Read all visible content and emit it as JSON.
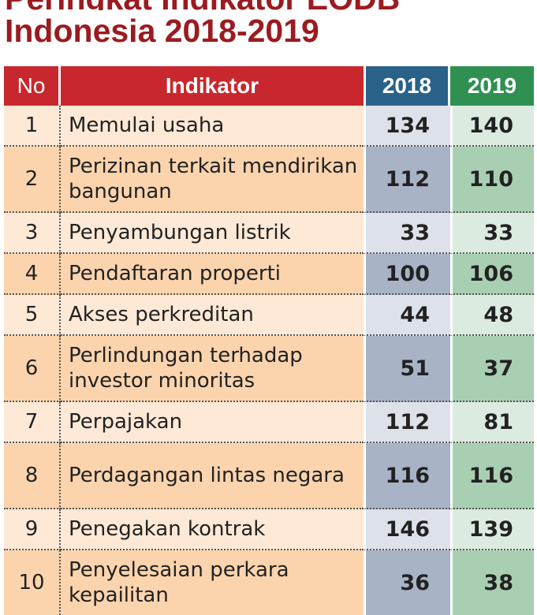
{
  "title": {
    "line1": "Peringkat Indikator EODB",
    "line2": "Indonesia 2018-2019"
  },
  "table": {
    "headers": {
      "no": "No",
      "indikator": "Indikator",
      "y2018": "2018",
      "y2019": "2019"
    },
    "rows": [
      {
        "no": "1",
        "label": "Memulai usaha",
        "v2018": "134",
        "v2019": "140"
      },
      {
        "no": "2",
        "label": "Perizinan terkait mendirikan bangunan",
        "v2018": "112",
        "v2019": "110"
      },
      {
        "no": "3",
        "label": "Penyambungan listrik",
        "v2018": "33",
        "v2019": "33"
      },
      {
        "no": "4",
        "label": "Pendaftaran properti",
        "v2018": "100",
        "v2019": "106"
      },
      {
        "no": "5",
        "label": "Akses perkreditan",
        "v2018": "44",
        "v2019": "48"
      },
      {
        "no": "6",
        "label": "Perlindungan terhadap investor minoritas",
        "v2018": "51",
        "v2019": "37"
      },
      {
        "no": "7",
        "label": "Perpajakan",
        "v2018": "112",
        "v2019": "81"
      },
      {
        "no": "8",
        "label": "Perdagangan lintas negara",
        "v2018": "116",
        "v2019": "116"
      },
      {
        "no": "9",
        "label": "Penegakan kontrak",
        "v2018": "146",
        "v2019": "139"
      },
      {
        "no": "10",
        "label": "Penyelesaian perkara kepailitan",
        "v2018": "36",
        "v2019": "38"
      }
    ]
  },
  "colors": {
    "title": "#9b1b20",
    "header_red": "#c8282d",
    "header_2018": "#2a6189",
    "header_2019": "#2f9052"
  }
}
